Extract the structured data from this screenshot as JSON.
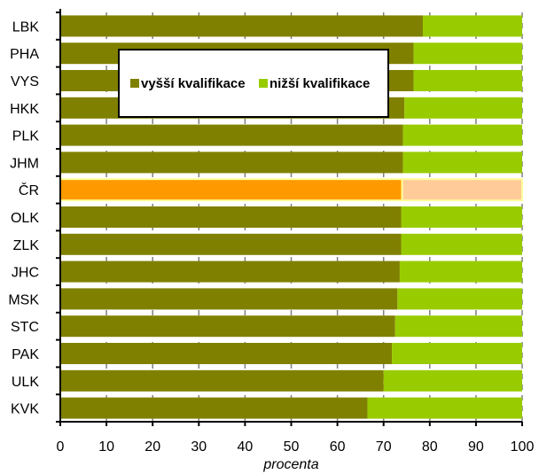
{
  "chart_data": {
    "type": "bar",
    "orientation": "horizontal",
    "stacked": true,
    "categories": [
      "LBK",
      "PHA",
      "VYS",
      "HKK",
      "PLK",
      "JHM",
      "ČR",
      "OLK",
      "ZLK",
      "JHC",
      "MSK",
      "STC",
      "PAK",
      "ULK",
      "KVK"
    ],
    "series": [
      {
        "name": "vyšší kvalifikace",
        "color": "#808000",
        "highlight_color": "#ff9900",
        "values": [
          78.5,
          76.5,
          76.5,
          74.5,
          74.2,
          74.2,
          74.0,
          73.8,
          73.8,
          73.5,
          73.0,
          72.5,
          71.8,
          70.0,
          66.5
        ]
      },
      {
        "name": "nižší kvalifikace",
        "color": "#99cc00",
        "highlight_color": "#ffcc99",
        "values": [
          21.5,
          23.5,
          23.5,
          25.5,
          25.8,
          25.8,
          26.0,
          26.2,
          26.2,
          26.5,
          27.0,
          27.5,
          28.2,
          30.0,
          33.5
        ]
      }
    ],
    "highlight_category": "ČR",
    "xlim": [
      0,
      100
    ],
    "x_ticks": [
      "0",
      "10",
      "20",
      "30",
      "40",
      "50",
      "60",
      "70",
      "80",
      "90",
      "100"
    ],
    "xlabel": "procenta",
    "ylabel": "",
    "grid": "vertical dashed",
    "legend_position": "top-left inside"
  }
}
